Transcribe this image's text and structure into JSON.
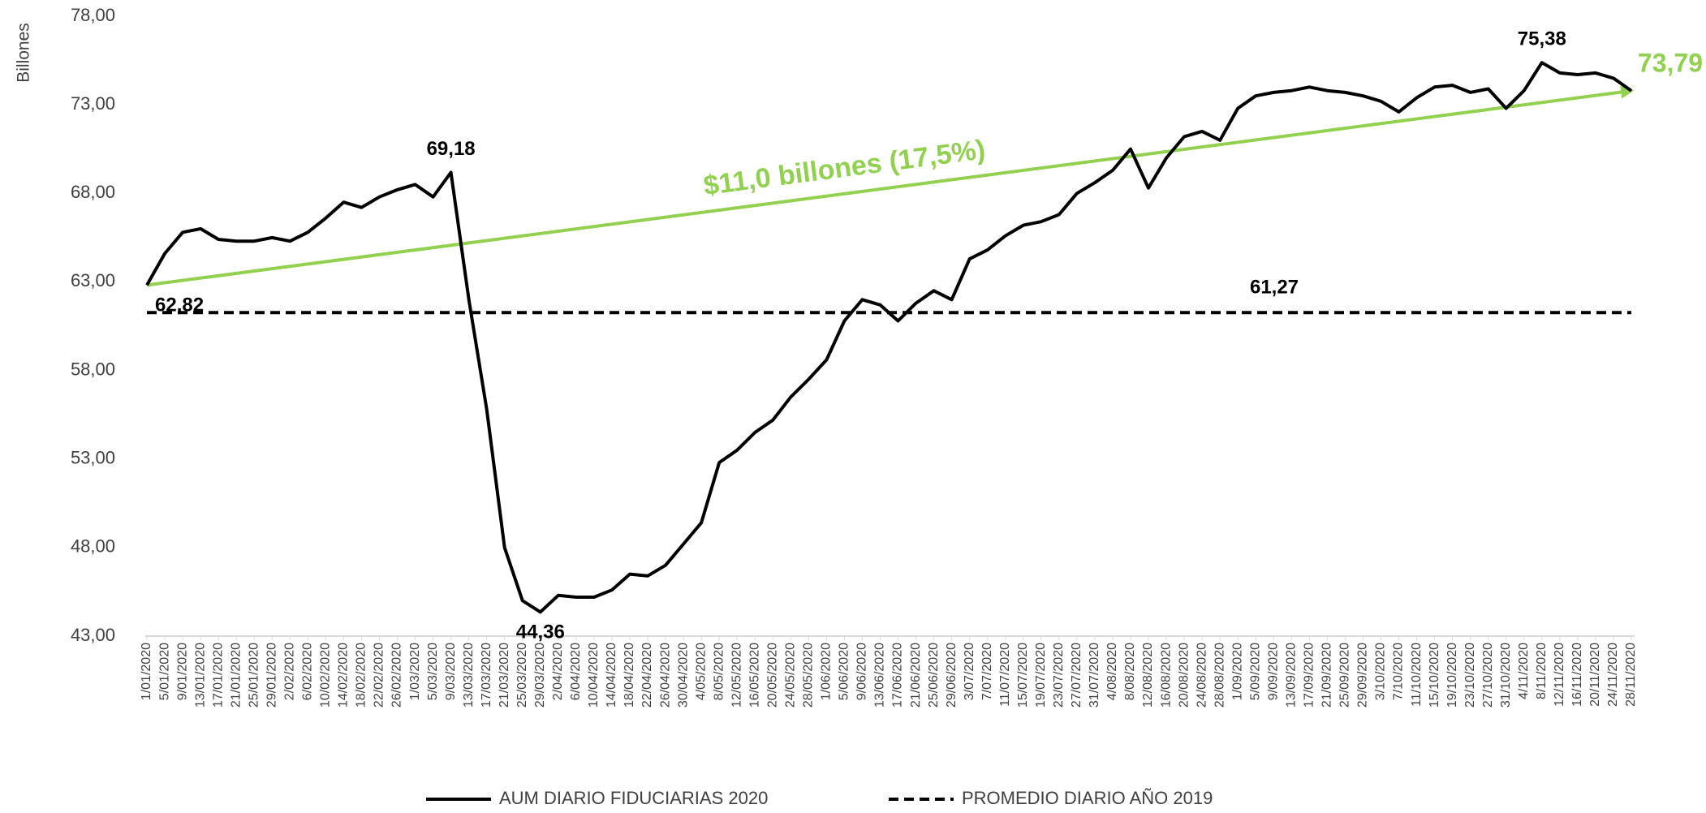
{
  "chart_data": {
    "type": "line",
    "y_label": "Billones",
    "categories": [
      "1/01/2020",
      "5/01/2020",
      "9/01/2020",
      "13/01/2020",
      "17/01/2020",
      "21/01/2020",
      "25/01/2020",
      "29/01/2020",
      "2/02/2020",
      "6/02/2020",
      "10/02/2020",
      "14/02/2020",
      "18/02/2020",
      "22/02/2020",
      "26/02/2020",
      "1/03/2020",
      "5/03/2020",
      "9/03/2020",
      "13/03/2020",
      "17/03/2020",
      "21/03/2020",
      "25/03/2020",
      "29/03/2020",
      "2/04/2020",
      "6/04/2020",
      "10/04/2020",
      "14/04/2020",
      "18/04/2020",
      "22/04/2020",
      "26/04/2020",
      "30/04/2020",
      "4/05/2020",
      "8/05/2020",
      "12/05/2020",
      "16/05/2020",
      "20/05/2020",
      "24/05/2020",
      "28/05/2020",
      "1/06/2020",
      "5/06/2020",
      "9/06/2020",
      "13/06/2020",
      "17/06/2020",
      "21/06/2020",
      "25/06/2020",
      "29/06/2020",
      "3/07/2020",
      "7/07/2020",
      "11/07/2020",
      "15/07/2020",
      "19/07/2020",
      "23/07/2020",
      "27/07/2020",
      "31/07/2020",
      "4/08/2020",
      "8/08/2020",
      "12/08/2020",
      "16/08/2020",
      "20/08/2020",
      "24/08/2020",
      "28/08/2020",
      "1/09/2020",
      "5/09/2020",
      "9/09/2020",
      "13/09/2020",
      "17/09/2020",
      "21/09/2020",
      "25/09/2020",
      "29/09/2020",
      "3/10/2020",
      "7/10/2020",
      "11/10/2020",
      "15/10/2020",
      "19/10/2020",
      "23/10/2020",
      "27/10/2020",
      "31/10/2020",
      "4/11/2020",
      "8/11/2020",
      "12/11/2020",
      "16/11/2020",
      "20/11/2020",
      "24/11/2020",
      "28/11/2020"
    ],
    "series": [
      {
        "name": "AUM DIARIO FIDUCIARIAS 2020",
        "color": "#000000",
        "values": [
          62.82,
          64.6,
          65.8,
          66.0,
          65.4,
          65.3,
          65.3,
          65.5,
          65.3,
          65.8,
          66.6,
          67.5,
          67.2,
          67.8,
          68.2,
          68.5,
          67.8,
          69.18,
          62.0,
          55.8,
          48.0,
          45.0,
          44.36,
          45.3,
          45.2,
          45.2,
          45.6,
          46.5,
          46.4,
          47.0,
          48.2,
          49.4,
          52.8,
          53.5,
          54.5,
          55.2,
          56.5,
          57.5,
          58.6,
          60.8,
          62.0,
          61.7,
          60.8,
          61.8,
          62.5,
          62.0,
          64.3,
          64.8,
          65.6,
          66.2,
          66.4,
          66.8,
          68.0,
          68.6,
          69.3,
          70.5,
          68.3,
          70.0,
          71.2,
          71.5,
          71.0,
          72.8,
          73.5,
          73.7,
          73.8,
          74.0,
          73.8,
          73.7,
          73.5,
          73.2,
          72.6,
          73.4,
          74.0,
          74.1,
          73.7,
          73.9,
          72.8,
          73.8,
          75.38,
          74.8,
          74.7,
          74.8,
          74.5,
          73.79
        ],
        "value_labels": [
          "62,82",
          null,
          null,
          null,
          null,
          null,
          null,
          null,
          null,
          null,
          null,
          null,
          null,
          null,
          null,
          null,
          null,
          "69,18",
          null,
          null,
          null,
          null,
          "44,36",
          null,
          null,
          null,
          null,
          null,
          null,
          null,
          null,
          null,
          null,
          null,
          null,
          null,
          null,
          null,
          null,
          null,
          null,
          null,
          null,
          null,
          null,
          null,
          null,
          null,
          null,
          null,
          null,
          null,
          null,
          null,
          null,
          null,
          null,
          null,
          null,
          null,
          null,
          null,
          null,
          null,
          null,
          null,
          null,
          null,
          null,
          null,
          null,
          null,
          null,
          null,
          null,
          null,
          null,
          null,
          "75,38",
          null,
          null,
          null,
          null,
          null
        ]
      }
    ],
    "reference_line": {
      "name": "PROMEDIO DIARIO AÑO 2019",
      "value": 61.27,
      "value_label": "61,27",
      "color": "#000000",
      "style": "dashed"
    },
    "trend": {
      "start": 62.82,
      "end": 73.79,
      "label": "$11,0 billones (17,5%)",
      "end_label": "73,79",
      "color": "#92d050"
    },
    "ylim": [
      43,
      78
    ],
    "yticks": [
      {
        "value": 43,
        "label": "43,00"
      },
      {
        "value": 48,
        "label": "48,00"
      },
      {
        "value": 53,
        "label": "53,00"
      },
      {
        "value": 58,
        "label": "58,00"
      },
      {
        "value": 63,
        "label": "63,00"
      },
      {
        "value": 68,
        "label": "68,00"
      },
      {
        "value": 73,
        "label": "73,00"
      },
      {
        "value": 78,
        "label": "78,00"
      }
    ],
    "grid": false,
    "legend": "bottom"
  }
}
